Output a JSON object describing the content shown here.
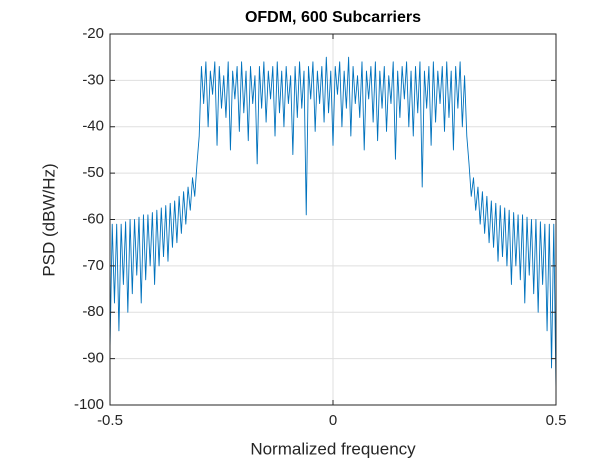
{
  "chart_data": {
    "type": "line",
    "title": "OFDM, 600 Subcarriers",
    "x_label": "Normalized frequency",
    "y_label": "PSD (dBW/Hz)",
    "xlim": [
      -0.5,
      0.5
    ],
    "ylim": [
      -100,
      -20
    ],
    "xticks": [
      -0.5,
      0,
      0.5
    ],
    "yticks": [
      -100,
      -90,
      -80,
      -70,
      -60,
      -50,
      -40,
      -30,
      -20
    ],
    "grid": true,
    "x": [
      -0.5,
      -0.495,
      -0.49,
      -0.485,
      -0.48,
      -0.475,
      -0.47,
      -0.465,
      -0.46,
      -0.455,
      -0.45,
      -0.445,
      -0.44,
      -0.435,
      -0.43,
      -0.425,
      -0.42,
      -0.415,
      -0.41,
      -0.405,
      -0.4,
      -0.395,
      -0.39,
      -0.385,
      -0.38,
      -0.375,
      -0.37,
      -0.365,
      -0.36,
      -0.355,
      -0.35,
      -0.345,
      -0.34,
      -0.335,
      -0.33,
      -0.325,
      -0.32,
      -0.315,
      -0.31,
      -0.305,
      -0.3,
      -0.295,
      -0.29,
      -0.285,
      -0.28,
      -0.275,
      -0.27,
      -0.265,
      -0.26,
      -0.255,
      -0.25,
      -0.245,
      -0.24,
      -0.235,
      -0.23,
      -0.225,
      -0.22,
      -0.215,
      -0.21,
      -0.205,
      -0.2,
      -0.195,
      -0.19,
      -0.185,
      -0.18,
      -0.175,
      -0.17,
      -0.165,
      -0.16,
      -0.155,
      -0.15,
      -0.145,
      -0.14,
      -0.135,
      -0.13,
      -0.125,
      -0.12,
      -0.115,
      -0.11,
      -0.105,
      -0.1,
      -0.095,
      -0.09,
      -0.085,
      -0.08,
      -0.075,
      -0.07,
      -0.065,
      -0.06,
      -0.055,
      -0.05,
      -0.045,
      -0.04,
      -0.035,
      -0.03,
      -0.025,
      -0.02,
      -0.015,
      -0.01,
      -0.005,
      0,
      0.005,
      0.01,
      0.015,
      0.02,
      0.025,
      0.03,
      0.035,
      0.04,
      0.045,
      0.05,
      0.055,
      0.06,
      0.065,
      0.07,
      0.075,
      0.08,
      0.085,
      0.09,
      0.095,
      0.1,
      0.105,
      0.11,
      0.115,
      0.12,
      0.125,
      0.13,
      0.135,
      0.14,
      0.145,
      0.15,
      0.155,
      0.16,
      0.165,
      0.17,
      0.175,
      0.18,
      0.185,
      0.19,
      0.195,
      0.2,
      0.205,
      0.21,
      0.215,
      0.22,
      0.225,
      0.23,
      0.235,
      0.24,
      0.245,
      0.25,
      0.255,
      0.26,
      0.265,
      0.27,
      0.275,
      0.28,
      0.285,
      0.29,
      0.295,
      0.3,
      0.305,
      0.31,
      0.315,
      0.32,
      0.325,
      0.33,
      0.335,
      0.34,
      0.345,
      0.35,
      0.355,
      0.36,
      0.365,
      0.37,
      0.375,
      0.38,
      0.385,
      0.39,
      0.395,
      0.4,
      0.405,
      0.41,
      0.415,
      0.42,
      0.425,
      0.43,
      0.435,
      0.44,
      0.445,
      0.45,
      0.455,
      0.46,
      0.465,
      0.47,
      0.475,
      0.48,
      0.485,
      0.49,
      0.495,
      0.5
    ],
    "series": [
      {
        "color": "#0072bd",
        "values": [
          -88,
          -61,
          -78,
          -61,
          -84,
          -61,
          -74,
          -60.5,
          -80,
          -60,
          -76,
          -60,
          -72,
          -59.5,
          -78,
          -59,
          -73,
          -59,
          -70,
          -58.5,
          -74,
          -58,
          -70,
          -57.5,
          -68,
          -57,
          -69,
          -56.5,
          -66,
          -56,
          -65,
          -55,
          -63,
          -54,
          -61,
          -53,
          -58,
          -51,
          -55,
          -48,
          -42,
          -27,
          -35,
          -26,
          -40,
          -28,
          -33,
          -26,
          -44,
          -27,
          -36,
          -29,
          -38,
          -26,
          -45,
          -28,
          -34,
          -27,
          -41,
          -26,
          -37,
          -28,
          -43,
          -27,
          -35,
          -29,
          -48,
          -27,
          -36,
          -26,
          -39,
          -28,
          -34,
          -27,
          -42,
          -26,
          -37,
          -28,
          -40,
          -27,
          -35,
          -29,
          -46,
          -27,
          -38,
          -26,
          -36,
          -28,
          -59,
          -27,
          -34,
          -26,
          -41,
          -28,
          -35,
          -27,
          -39,
          -25,
          -37,
          -28,
          -44,
          -27,
          -33,
          -26,
          -40,
          -28,
          -36,
          -25,
          -42,
          -27,
          -35,
          -29,
          -38,
          -26,
          -45,
          -28,
          -34,
          -27,
          -39,
          -26,
          -43,
          -28,
          -36,
          -27,
          -41,
          -29,
          -35,
          -26,
          -47,
          -28,
          -38,
          -27,
          -34,
          -26,
          -40,
          -28,
          -42,
          -27,
          -37,
          -26,
          -53,
          -28,
          -36,
          -27,
          -44,
          -26,
          -39,
          -28,
          -35,
          -27,
          -41,
          -26,
          -38,
          -28,
          -45,
          -27,
          -36,
          -26,
          -40,
          -29,
          -42,
          -48,
          -55,
          -51,
          -58,
          -53,
          -61,
          -54,
          -63,
          -55,
          -65,
          -56,
          -66,
          -56.5,
          -69,
          -57,
          -68,
          -57.5,
          -70,
          -58,
          -74,
          -58.5,
          -70,
          -59,
          -73,
          -59,
          -78,
          -59.5,
          -72,
          -60,
          -76,
          -60,
          -80,
          -60.5,
          -74,
          -61,
          -84,
          -61,
          -92,
          -61,
          -97
        ]
      }
    ]
  }
}
